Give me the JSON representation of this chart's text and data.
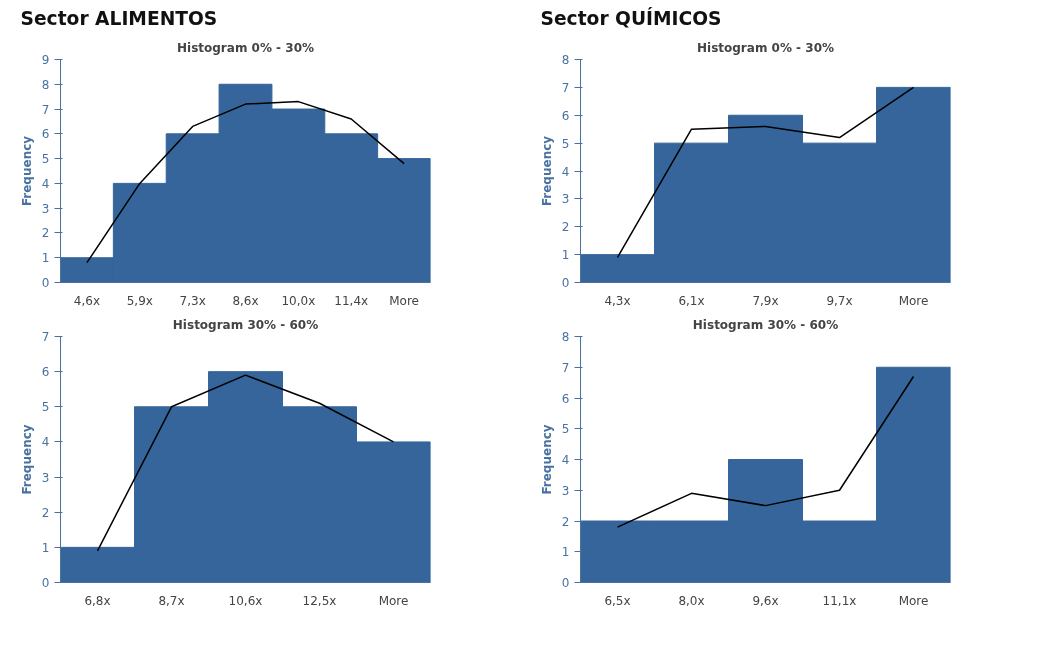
{
  "chart_data": [
    {
      "type": "bar",
      "annotations": [
        "Sector ALIMENTOS"
      ],
      "title": "Histogram 0% - 30%",
      "ylabel": "Frequency",
      "categories": [
        "4,6x",
        "5,9x",
        "7,3x",
        "8,6x",
        "10,0x",
        "11,4x",
        "More"
      ],
      "series": [
        {
          "color": "#35659a",
          "values": [
            1,
            4,
            6,
            8,
            7,
            6,
            5
          ]
        },
        {
          "type": "line",
          "color": "#000000",
          "values": [
            0.8,
            4.0,
            6.3,
            7.2,
            7.3,
            6.6,
            4.8
          ]
        }
      ],
      "ylim": [
        0,
        9
      ],
      "yticks": [
        0,
        1,
        2,
        3,
        4,
        5,
        6,
        7,
        8,
        9
      ],
      "grid": false
    },
    {
      "type": "bar",
      "annotations": [
        "Sector QUÍMICOS"
      ],
      "title": "Histogram 0% - 30%",
      "ylabel": "Frequency",
      "categories": [
        "4,3x",
        "6,1x",
        "7,9x",
        "9,7x",
        "More"
      ],
      "series": [
        {
          "color": "#35659a",
          "values": [
            1,
            5,
            6,
            5,
            7
          ]
        },
        {
          "type": "line",
          "color": "#000000",
          "values": [
            0.9,
            5.5,
            5.6,
            5.2,
            7.0
          ]
        }
      ],
      "ylim": [
        0,
        8
      ],
      "yticks": [
        0,
        1,
        2,
        3,
        4,
        5,
        6,
        7,
        8
      ],
      "grid": false
    },
    {
      "type": "bar",
      "title": "Histogram 30% - 60%",
      "ylabel": "Frequency",
      "categories": [
        "6,8x",
        "8,7x",
        "10,6x",
        "12,5x",
        "More"
      ],
      "series": [
        {
          "color": "#35659a",
          "values": [
            1,
            5,
            6,
            5,
            4
          ]
        },
        {
          "type": "line",
          "color": "#000000",
          "values": [
            0.9,
            5.0,
            5.9,
            5.1,
            4.0
          ]
        }
      ],
      "ylim": [
        0,
        7
      ],
      "yticks": [
        0,
        1,
        2,
        3,
        4,
        5,
        6,
        7
      ],
      "grid": false
    },
    {
      "type": "bar",
      "title": "Histogram 30% - 60%",
      "ylabel": "Frequency",
      "categories": [
        "6,5x",
        "8,0x",
        "9,6x",
        "11,1x",
        "More"
      ],
      "series": [
        {
          "color": "#35659a",
          "values": [
            2,
            2,
            4,
            2,
            7
          ]
        },
        {
          "type": "line",
          "color": "#000000",
          "values": [
            1.8,
            2.9,
            2.5,
            3.0,
            6.7
          ]
        }
      ],
      "ylim": [
        0,
        8
      ],
      "yticks": [
        0,
        1,
        2,
        3,
        4,
        5,
        6,
        7,
        8
      ],
      "grid": false
    }
  ]
}
